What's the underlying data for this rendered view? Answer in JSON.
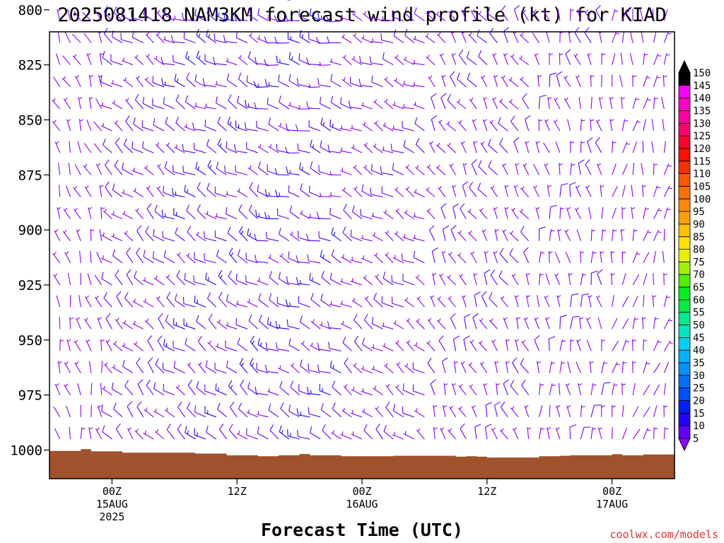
{
  "header": {
    "title": "2025081418 NAM3KM forecast wind profile (kt) for KIAD"
  },
  "footer": {
    "credit": "coolwx.com/models"
  },
  "chart_data": {
    "type": "wind-profile-barbs",
    "title": "2025081418 NAM3KM forecast wind profile (kt) for KIAD",
    "xlabel": "Forecast Time (UTC)",
    "ylabel": "",
    "y_ticks": [
      "800",
      "825",
      "850",
      "875",
      "900",
      "925",
      "950",
      "975",
      "1000"
    ],
    "ylim": [
      810,
      1013
    ],
    "x_ticks": [
      {
        "lines": [
          "00Z",
          "15AUG",
          "2025"
        ],
        "hour": 6
      },
      {
        "lines": [
          "12Z"
        ],
        "hour": 18
      },
      {
        "lines": [
          "00Z",
          "16AUG"
        ],
        "hour": 30
      },
      {
        "lines": [
          "12Z"
        ],
        "hour": 42
      },
      {
        "lines": [
          "00Z",
          "17AUG"
        ],
        "hour": 54
      }
    ],
    "xlim": [
      0,
      60
    ],
    "colorbar": {
      "levels": [
        5,
        10,
        15,
        20,
        25,
        30,
        35,
        40,
        45,
        50,
        55,
        60,
        65,
        70,
        75,
        80,
        85,
        90,
        95,
        100,
        105,
        110,
        115,
        120,
        125,
        130,
        135,
        140,
        145,
        150
      ],
      "colors": [
        "#8b00ff",
        "#6200ff",
        "#2400ff",
        "#0020ff",
        "#0050ff",
        "#0070ff",
        "#0090ff",
        "#00b0ff",
        "#00d0f0",
        "#00e6c0",
        "#00ea90",
        "#00ee40",
        "#00f020",
        "#50f000",
        "#a0f000",
        "#e8f000",
        "#ffe000",
        "#ffc000",
        "#ffa000",
        "#ff8800",
        "#ff7000",
        "#ff5800",
        "#ff3000",
        "#ff1000",
        "#ff0030",
        "#ff0070",
        "#ff00a0",
        "#ff00c8",
        "#ff00ff",
        "#000000"
      ]
    },
    "barb_levels_hpa": [
      795,
      805,
      815,
      825,
      835,
      845,
      855,
      865,
      875,
      885,
      895,
      905,
      915,
      925,
      935,
      945,
      955,
      965,
      975,
      985,
      995
    ],
    "time_hours": [
      1,
      2,
      3,
      4,
      5,
      6,
      7,
      8,
      9,
      10,
      11,
      12,
      13,
      14,
      15,
      16,
      17,
      18,
      19,
      20,
      21,
      22,
      23,
      24,
      25,
      26,
      27,
      28,
      29,
      30,
      31,
      32,
      33,
      34,
      35,
      36,
      37,
      38,
      39,
      40,
      41,
      42,
      43,
      44,
      45,
      46,
      47,
      48,
      49,
      50,
      51,
      52,
      53,
      54,
      55,
      56,
      57,
      58,
      59
    ],
    "wind_regimes": [
      {
        "hours": [
          1,
          5
        ],
        "dir_deg": 340,
        "speed_kt": 5
      },
      {
        "hours": [
          6,
          11
        ],
        "dir_deg": 310,
        "speed_kt": 10
      },
      {
        "hours": [
          12,
          20
        ],
        "dir_deg": 300,
        "speed_kt": 12
      },
      {
        "hours": [
          21,
          28
        ],
        "dir_deg": 290,
        "speed_kt": 12
      },
      {
        "hours": [
          29,
          36
        ],
        "dir_deg": 300,
        "speed_kt": 8
      },
      {
        "hours": [
          37,
          46
        ],
        "dir_deg": 330,
        "speed_kt": 8
      },
      {
        "hours": [
          47,
          53
        ],
        "dir_deg": 350,
        "speed_kt": 7
      },
      {
        "hours": [
          54,
          59
        ],
        "dir_deg": 10,
        "speed_kt": 5
      }
    ],
    "terrain": {
      "color": "#a0522d",
      "surface_pressure_hpa": [
        1000.4,
        1000.4,
        1000.4,
        999.6,
        1000.6,
        1000.6,
        1000.6,
        1001.2,
        1001.2,
        1001.2,
        1001.2,
        1001.2,
        1001.2,
        1001.2,
        1001.6,
        1001.6,
        1001.6,
        1002.4,
        1002.4,
        1002.4,
        1002.8,
        1002.8,
        1002.4,
        1002.4,
        1001.8,
        1002.4,
        1002.4,
        1002.4,
        1002.8,
        1002.8,
        1002.8,
        1002.8,
        1002.8,
        1002.6,
        1002.6,
        1002.6,
        1002.6,
        1002.6,
        1002.6,
        1003.0,
        1002.8,
        1003.0,
        1003.4,
        1003.4,
        1003.4,
        1003.4,
        1003.4,
        1002.8,
        1002.8,
        1002.6,
        1002.4,
        1002.4,
        1002.4,
        1002.4,
        1001.9,
        1002.4,
        1002.4,
        1002.0,
        1002.0,
        1002.0
      ]
    }
  }
}
